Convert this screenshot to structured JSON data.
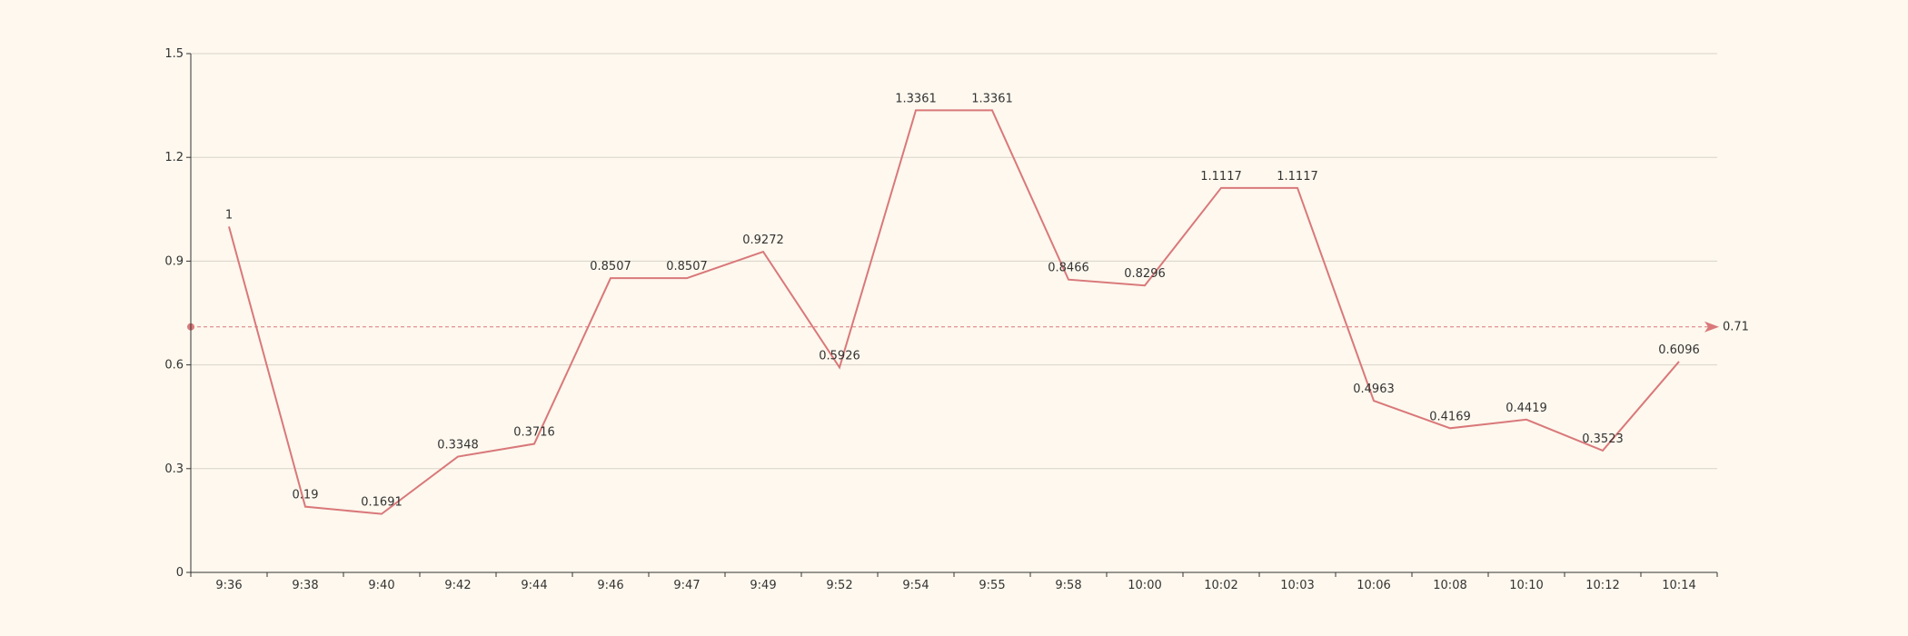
{
  "colors": {
    "background": "#fef8ee",
    "series": "#d9787a",
    "grid": "#d8d4c8",
    "axis": "#333333",
    "text": "#333333"
  },
  "chart_data": {
    "type": "line",
    "title": "",
    "xlabel": "",
    "ylabel": "",
    "categories": [
      "9:36",
      "9:38",
      "9:40",
      "9:42",
      "9:44",
      "9:46",
      "9:47",
      "9:49",
      "9:52",
      "9:54",
      "9:55",
      "9:58",
      "10:00",
      "10:02",
      "10:03",
      "10:06",
      "10:08",
      "10:10",
      "10:12",
      "10:14"
    ],
    "series": [
      {
        "values": [
          1,
          0.19,
          0.1691,
          0.3348,
          0.3716,
          0.8507,
          0.8507,
          0.9272,
          0.5926,
          1.3361,
          1.3361,
          0.8466,
          0.8296,
          1.1117,
          1.1117,
          0.4963,
          0.4169,
          0.4419,
          0.3523,
          0.6096
        ],
        "labels": [
          "1",
          "0.19",
          "0.1691",
          "0.3348",
          "0.3716",
          "0.8507",
          "0.8507",
          "0.9272",
          "0.5926",
          "1.3361",
          "1.3361",
          "0.8466",
          "0.8296",
          "1.1117",
          "1.1117",
          "0.4963",
          "0.4169",
          "0.4419",
          "0.3523",
          "0.6096"
        ]
      }
    ],
    "ylim": [
      0,
      1.5
    ],
    "yticks": [
      "0",
      "0.3",
      "0.6",
      "0.9",
      "1.2",
      "1.5"
    ],
    "reference_line": {
      "value": 0.71,
      "label": "0.71",
      "style": "dashed"
    },
    "grid": true,
    "legend": "none"
  }
}
